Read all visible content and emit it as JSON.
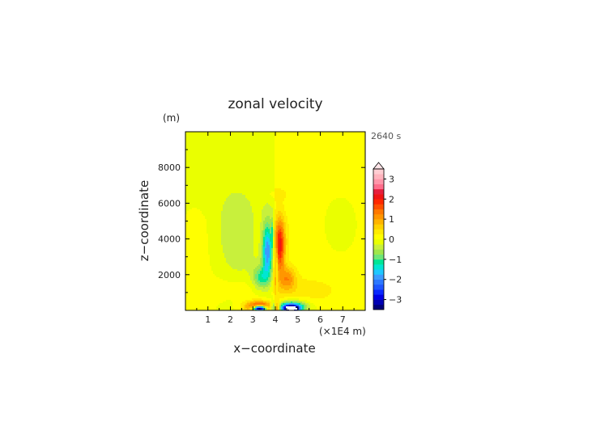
{
  "chart_data": {
    "type": "heatmap",
    "title": "zonal velocity",
    "xlabel": "x−coordinate",
    "ylabel": "z−coordinate",
    "x_unit": "(×1E4 m)",
    "y_unit": "(m)",
    "time_label": "2640 s",
    "xlim": [
      0,
      8
    ],
    "ylim": [
      0,
      10000
    ],
    "x_ticks": [
      1,
      2,
      3,
      4,
      5,
      6,
      7
    ],
    "x_tick_labels": [
      "1",
      "2",
      "3",
      "4",
      "5",
      "6",
      "7"
    ],
    "y_ticks": [
      2000,
      4000,
      6000,
      8000
    ],
    "y_tick_labels": [
      "2000",
      "4000",
      "6000",
      "8000"
    ],
    "colorbar": {
      "levels": [
        -3.5,
        -3.25,
        -3,
        -2.75,
        -2.5,
        -2.25,
        -2,
        -1.75,
        -1.5,
        -1.25,
        -1,
        -0.75,
        -0.5,
        -0.25,
        0,
        0.25,
        0.5,
        0.75,
        1,
        1.25,
        1.5,
        1.75,
        2,
        2.25,
        2.5,
        2.75,
        3,
        3.25,
        3.5
      ],
      "colors": [
        "#00007a",
        "#0000b4",
        "#0000e6",
        "#0a28ff",
        "#1e55ff",
        "#2d78ff",
        "#3c9bff",
        "#1ec8ff",
        "#00e6d2",
        "#00e696",
        "#6ee678",
        "#a0e64b",
        "#c8f03c",
        "#eaff00",
        "#ffff00",
        "#ffeb00",
        "#ffd200",
        "#ffb400",
        "#ff9600",
        "#ff7800",
        "#ff5000",
        "#ff2800",
        "#f01414",
        "#e61e3c",
        "#ff6e8c",
        "#ff96aa",
        "#ffb4be",
        "#ffcdd2"
      ],
      "tick_values": [
        3,
        2,
        1,
        0,
        -1,
        -2,
        -3
      ],
      "tick_labels": [
        "3",
        "2",
        "1",
        "0",
        "−1",
        "−2",
        "−3"
      ],
      "extend": "max"
    },
    "features": [
      {
        "name": "upper domain",
        "value": -0.2,
        "x_range": [
          0,
          4
        ],
        "z_range": [
          7000,
          10000
        ]
      },
      {
        "name": "upper domain",
        "value": 0.1,
        "x_range": [
          4,
          8
        ],
        "z_range": [
          7000,
          10000
        ]
      },
      {
        "name": "left low-level negative core",
        "value": -3.6,
        "center": [
          3.3,
          100
        ]
      },
      {
        "name": "right low-level negative core",
        "value": -3.6,
        "center": [
          4.7,
          100
        ]
      },
      {
        "name": "red ring around left core",
        "value": 2.5,
        "center": [
          3.3,
          200
        ]
      },
      {
        "name": "blue ring around right core",
        "value": -2.5,
        "center": [
          4.7,
          200
        ]
      },
      {
        "name": "left blue lobe",
        "value": -1.8,
        "center": [
          3.7,
          3500
        ]
      },
      {
        "name": "right red lobe",
        "value": 1.8,
        "center": [
          4.2,
          3600
        ]
      }
    ]
  }
}
